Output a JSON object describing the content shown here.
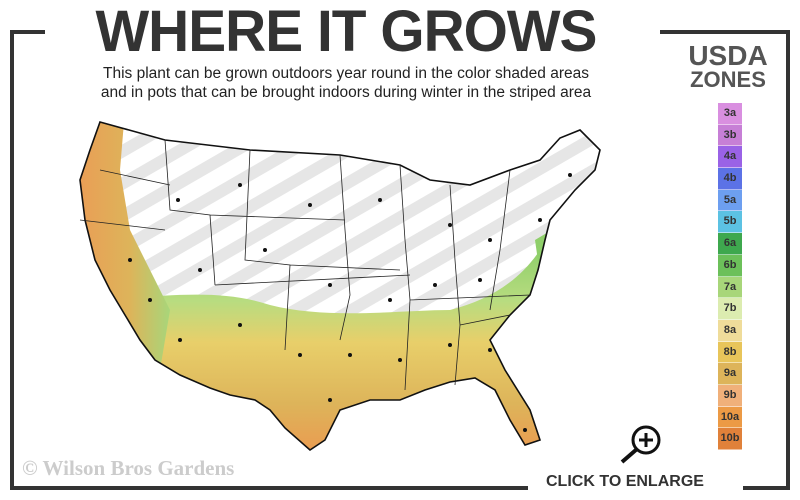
{
  "header": {
    "title": "WHERE IT GROWS",
    "subtitle_line1": "This plant can be grown outdoors year round in the color shaded areas",
    "subtitle_line2": "and in pots that can be brought indoors during winter in the striped area"
  },
  "legend": {
    "title_line1": "USDA",
    "title_line2": "ZONES",
    "zones": [
      {
        "label": "3a",
        "color": "#d98fe0"
      },
      {
        "label": "3b",
        "color": "#c77fd6"
      },
      {
        "label": "4a",
        "color": "#9a62e6"
      },
      {
        "label": "4b",
        "color": "#5c72e6"
      },
      {
        "label": "5a",
        "color": "#6d9ff0"
      },
      {
        "label": "5b",
        "color": "#5cc2e3"
      },
      {
        "label": "6a",
        "color": "#3ea84e"
      },
      {
        "label": "6b",
        "color": "#6cc05a"
      },
      {
        "label": "7a",
        "color": "#a8d67a"
      },
      {
        "label": "7b",
        "color": "#dcecb0"
      },
      {
        "label": "8a",
        "color": "#efdc9a"
      },
      {
        "label": "8b",
        "color": "#e8c55a"
      },
      {
        "label": "9a",
        "color": "#ddb45a"
      },
      {
        "label": "9b",
        "color": "#f0b07a"
      },
      {
        "label": "10a",
        "color": "#ec9a45"
      },
      {
        "label": "10b",
        "color": "#e0813a"
      }
    ]
  },
  "footer": {
    "copyright": "© Wilson Bros Gardens",
    "enlarge_label": "CLICK TO ENLARGE",
    "enlarge_icon": "zoom-in-magnifier-icon"
  }
}
